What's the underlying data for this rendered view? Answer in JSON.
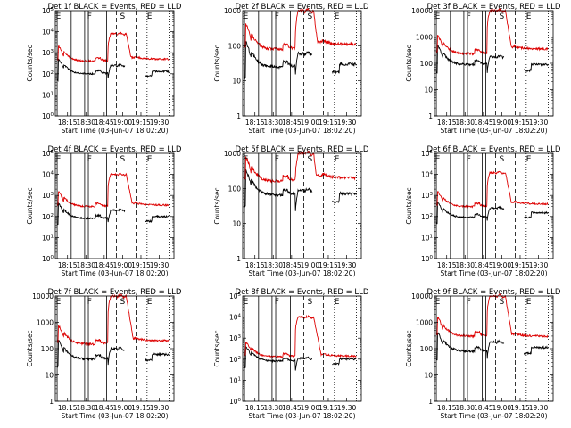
{
  "colors": {
    "events": "#000000",
    "lld": "#dd0000",
    "axes": "#000000"
  },
  "chart_data": [
    {
      "type": "line",
      "title": "Det 1f BLACK = Events, RED = LLD",
      "xlabel": "Start Time (03-Jun-07 18:02:20)",
      "ylabel": "Counts/sec",
      "scale": "log",
      "ylim": [
        1,
        100000
      ],
      "yticks": [
        {
          "v": 1,
          "b": "10",
          "e": "0"
        },
        {
          "v": 10,
          "b": "10",
          "e": "1"
        },
        {
          "v": 100,
          "b": "10",
          "e": "2"
        },
        {
          "v": 1000,
          "b": "10",
          "e": "3"
        },
        {
          "v": 10000,
          "b": "10",
          "e": "4"
        },
        {
          "v": 100000,
          "b": "10",
          "e": "5"
        }
      ],
      "xticks": [
        "18:15",
        "18:30",
        "18:45",
        "19:00",
        "19:15",
        "19:30"
      ],
      "markers": [
        "E",
        "F",
        "S",
        "E"
      ],
      "events_level": 100,
      "lld_level": 400,
      "lld_peak": 8000,
      "events_peak": 250,
      "after_events": 130,
      "after_lld": 500
    },
    {
      "type": "line",
      "title": "Det 2f BLACK = Events, RED = LLD",
      "xlabel": "Start Time (03-Jun-07 18:02:20)",
      "ylabel": "Counts/sec",
      "scale": "log",
      "ylim": [
        1,
        1000
      ],
      "yticks": [
        {
          "v": 1,
          "t": "1"
        },
        {
          "v": 10,
          "t": "10"
        },
        {
          "v": 100,
          "t": "100"
        },
        {
          "v": 1000,
          "t": "1000"
        }
      ],
      "xticks": [
        "18:15",
        "18:30",
        "18:45",
        "19:00",
        "19:15",
        "19:30"
      ],
      "markers": [
        "E",
        "F",
        "S",
        "E"
      ],
      "events_level": 25,
      "lld_level": 80,
      "lld_peak": 1000,
      "events_peak": 60,
      "after_events": 30,
      "after_lld": 110
    },
    {
      "type": "line",
      "title": "Det 3f BLACK = Events, RED = LLD",
      "xlabel": "Start Time (03-Jun-07 18:02:20)",
      "ylabel": "Counts/sec",
      "scale": "log",
      "ylim": [
        1,
        10000
      ],
      "yticks": [
        {
          "v": 1,
          "t": "1"
        },
        {
          "v": 10,
          "t": "10"
        },
        {
          "v": 100,
          "t": "100"
        },
        {
          "v": 1000,
          "t": "1000"
        },
        {
          "v": 10000,
          "t": "10000"
        }
      ],
      "xticks": [
        "18:15",
        "18:30",
        "18:45",
        "19:00",
        "19:15",
        "19:30"
      ],
      "markers": [
        "E",
        "F",
        "S",
        "E"
      ],
      "events_level": 90,
      "lld_level": 230,
      "lld_peak": 10000,
      "events_peak": 180,
      "after_events": 90,
      "after_lld": 350
    },
    {
      "type": "line",
      "title": "Det 4f BLACK = Events, RED = LLD",
      "xlabel": "Start Time (03-Jun-07 18:02:20)",
      "ylabel": "Counts/sec",
      "scale": "log",
      "ylim": [
        1,
        100000
      ],
      "yticks": [
        {
          "v": 1,
          "b": "10",
          "e": "0"
        },
        {
          "v": 10,
          "b": "10",
          "e": "1"
        },
        {
          "v": 100,
          "b": "10",
          "e": "2"
        },
        {
          "v": 1000,
          "b": "10",
          "e": "3"
        },
        {
          "v": 10000,
          "b": "10",
          "e": "4"
        },
        {
          "v": 100000,
          "b": "10",
          "e": "5"
        }
      ],
      "xticks": [
        "18:15",
        "18:30",
        "18:45",
        "19:00",
        "19:15",
        "19:30"
      ],
      "markers": [
        "E",
        "F",
        "S",
        "E"
      ],
      "events_level": 80,
      "lld_level": 300,
      "lld_peak": 10000,
      "events_peak": 200,
      "after_events": 100,
      "after_lld": 350
    },
    {
      "type": "line",
      "title": "Det 5f BLACK = Events, RED = LLD",
      "xlabel": "Start Time (03-Jun-07 18:02:20)",
      "ylabel": "Counts/sec",
      "scale": "log",
      "ylim": [
        1,
        1000
      ],
      "yticks": [
        {
          "v": 1,
          "t": "1"
        },
        {
          "v": 10,
          "t": "10"
        },
        {
          "v": 100,
          "t": "100"
        },
        {
          "v": 1000,
          "t": "1000"
        }
      ],
      "xticks": [
        "18:15",
        "18:30",
        "18:45",
        "19:00",
        "19:15",
        "19:30"
      ],
      "markers": [
        "E",
        "F",
        "S",
        "E"
      ],
      "events_level": 65,
      "lld_level": 160,
      "lld_peak": 1000,
      "events_peak": 90,
      "after_events": 70,
      "after_lld": 200
    },
    {
      "type": "line",
      "title": "Det 6f BLACK = Events, RED = LLD",
      "xlabel": "Start Time (03-Jun-07 18:02:20)",
      "ylabel": "Counts/sec",
      "scale": "log",
      "ylim": [
        1,
        100000
      ],
      "yticks": [
        {
          "v": 1,
          "b": "10",
          "e": "0"
        },
        {
          "v": 10,
          "b": "10",
          "e": "1"
        },
        {
          "v": 100,
          "b": "10",
          "e": "2"
        },
        {
          "v": 1000,
          "b": "10",
          "e": "3"
        },
        {
          "v": 10000,
          "b": "10",
          "e": "4"
        },
        {
          "v": 100000,
          "b": "10",
          "e": "5"
        }
      ],
      "xticks": [
        "18:15",
        "18:30",
        "18:45",
        "19:00",
        "19:15",
        "19:30"
      ],
      "markers": [
        "E",
        "F",
        "S",
        "E"
      ],
      "events_level": 90,
      "lld_level": 300,
      "lld_peak": 12000,
      "events_peak": 250,
      "after_events": 150,
      "after_lld": 400
    },
    {
      "type": "line",
      "title": "Det 7f BLACK = Events, RED = LLD",
      "xlabel": "Start Time (03-Jun-07 18:02:20)",
      "ylabel": "Counts/sec",
      "scale": "log",
      "ylim": [
        1,
        10000
      ],
      "yticks": [
        {
          "v": 1,
          "t": "1"
        },
        {
          "v": 10,
          "t": "10"
        },
        {
          "v": 100,
          "t": "100"
        },
        {
          "v": 1000,
          "t": "1000"
        },
        {
          "v": 10000,
          "t": "10000"
        }
      ],
      "xticks": [
        "18:15",
        "18:30",
        "18:45",
        "19:00",
        "19:15",
        "19:30"
      ],
      "markers": [
        "E",
        "F",
        "S",
        "E"
      ],
      "events_level": 40,
      "lld_level": 150,
      "lld_peak": 10000,
      "events_peak": 100,
      "after_events": 60,
      "after_lld": 200
    },
    {
      "type": "line",
      "title": "Det 8f BLACK = Events, RED = LLD",
      "xlabel": "Start Time (03-Jun-07 18:02:20)",
      "ylabel": "Counts/sec",
      "scale": "log",
      "ylim": [
        1,
        100000
      ],
      "yticks": [
        {
          "v": 1,
          "b": "10",
          "e": "0"
        },
        {
          "v": 10,
          "b": "10",
          "e": "1"
        },
        {
          "v": 100,
          "b": "10",
          "e": "2"
        },
        {
          "v": 1000,
          "b": "10",
          "e": "3"
        },
        {
          "v": 10000,
          "b": "10",
          "e": "4"
        },
        {
          "v": 100000,
          "b": "10",
          "e": "5"
        }
      ],
      "xticks": [
        "18:15",
        "18:30",
        "18:45",
        "19:00",
        "19:15",
        "19:30"
      ],
      "markers": [
        "E",
        "F",
        "S",
        "E"
      ],
      "events_level": 80,
      "lld_level": 130,
      "lld_peak": 10000,
      "events_peak": 110,
      "after_events": 100,
      "after_lld": 140
    },
    {
      "type": "line",
      "title": "Det 9f BLACK = Events, RED = LLD",
      "xlabel": "Start Time (03-Jun-07 18:02:20)",
      "ylabel": "Counts/sec",
      "scale": "log",
      "ylim": [
        1,
        10000
      ],
      "yticks": [
        {
          "v": 1,
          "t": "1"
        },
        {
          "v": 10,
          "t": "10"
        },
        {
          "v": 100,
          "t": "100"
        },
        {
          "v": 1000,
          "t": "1000"
        },
        {
          "v": 10000,
          "t": "10000"
        }
      ],
      "xticks": [
        "18:15",
        "18:30",
        "18:45",
        "19:00",
        "19:15",
        "19:30"
      ],
      "markers": [
        "E",
        "F",
        "S",
        "E"
      ],
      "events_level": 80,
      "lld_level": 300,
      "lld_peak": 10000,
      "events_peak": 180,
      "after_events": 110,
      "after_lld": 300
    }
  ]
}
